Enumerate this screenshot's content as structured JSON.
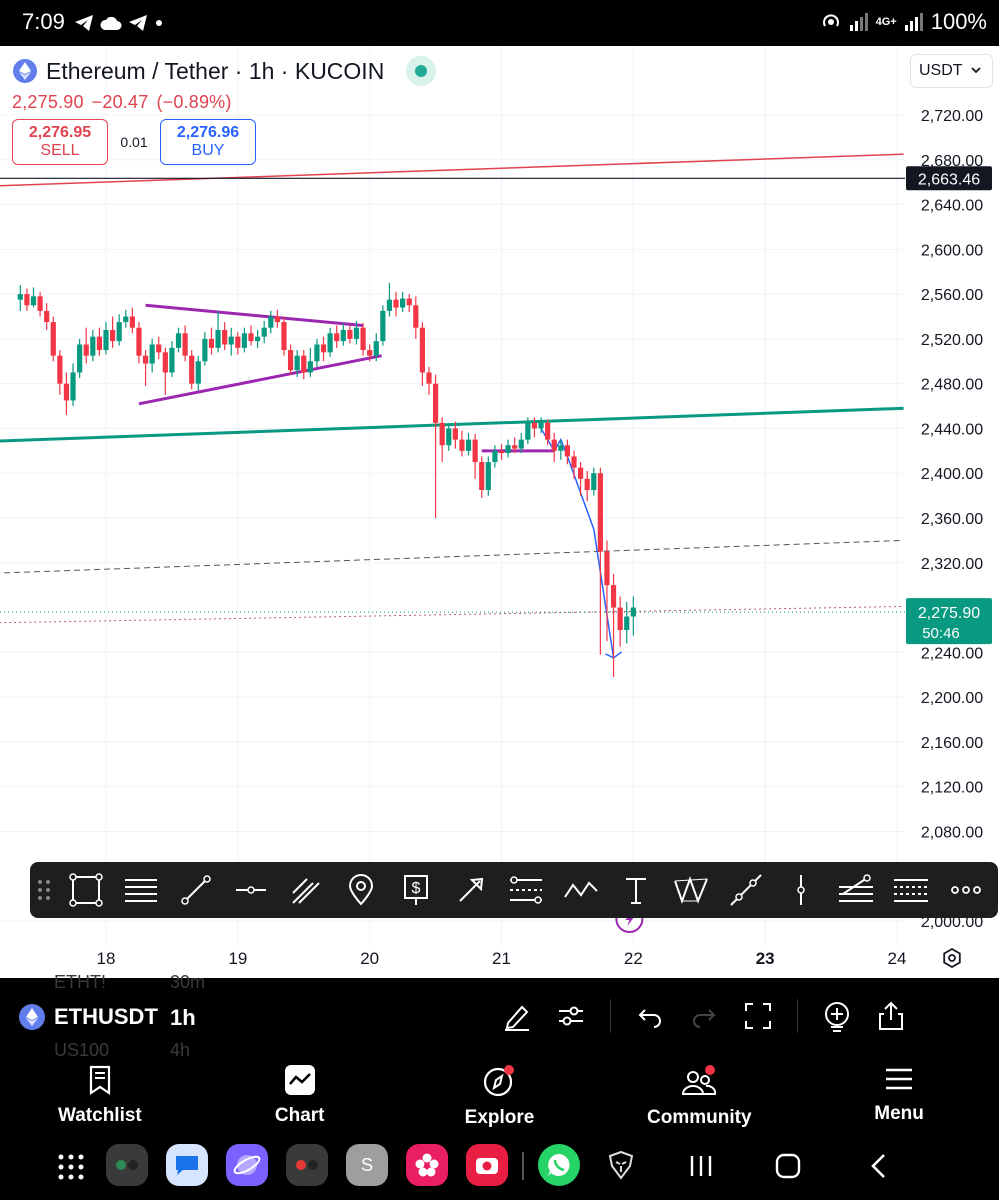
{
  "status_bar": {
    "time": "7:09",
    "network": "4G+",
    "battery": "100%"
  },
  "header": {
    "symbol_title": "Ethereum / Tether · 1h · KUCOIN",
    "last_price": "2,275.90",
    "change": "−20.47",
    "change_pct": "(−0.89%)",
    "sell_price": "2,276.95",
    "sell_label": "SELL",
    "spread": "0.01",
    "buy_price": "2,276.96",
    "buy_label": "BUY",
    "currency": "USDT"
  },
  "price_axis": {
    "ticks": [
      "2,720.00",
      "2,680.00",
      "2,640.00",
      "2,600.00",
      "2,560.00",
      "2,520.00",
      "2,480.00",
      "2,440.00",
      "2,400.00",
      "2,360.00",
      "2,320.00",
      "2,240.00",
      "2,200.00",
      "2,160.00",
      "2,120.00",
      "2,080.00",
      "2,000.00"
    ],
    "marker_level": "2,663.46",
    "current_price": "2,275.90",
    "countdown": "50:46"
  },
  "time_axis": {
    "labels": [
      "18",
      "19",
      "20",
      "21",
      "22",
      "23",
      "24"
    ],
    "bold_label": "23"
  },
  "chart_data": {
    "type": "candlestick",
    "symbol": "ETHUSDT",
    "interval": "1h",
    "x_days": [
      18,
      19,
      20,
      21,
      22,
      23,
      24
    ],
    "ylim": [
      2000,
      2740
    ],
    "colors": {
      "up": "#089981",
      "down": "#f23645",
      "triangle": "#9c27b0",
      "support": "#089981",
      "resistance": "#e0424f",
      "projection": "#2962ff"
    },
    "candles": [
      [
        17.35,
        2555,
        2560,
        2568,
        2545
      ],
      [
        17.4,
        2560,
        2550,
        2565,
        2545
      ],
      [
        17.45,
        2550,
        2558,
        2566,
        2548
      ],
      [
        17.5,
        2558,
        2545,
        2562,
        2540
      ],
      [
        17.55,
        2545,
        2535,
        2552,
        2528
      ],
      [
        17.6,
        2535,
        2505,
        2540,
        2500
      ],
      [
        17.65,
        2505,
        2480,
        2510,
        2470
      ],
      [
        17.7,
        2480,
        2465,
        2490,
        2452
      ],
      [
        17.75,
        2465,
        2490,
        2498,
        2460
      ],
      [
        17.8,
        2490,
        2515,
        2520,
        2485
      ],
      [
        17.85,
        2515,
        2505,
        2530,
        2498
      ],
      [
        17.9,
        2505,
        2522,
        2528,
        2500
      ],
      [
        17.95,
        2522,
        2510,
        2530,
        2505
      ],
      [
        18.0,
        2510,
        2528,
        2535,
        2506
      ],
      [
        18.05,
        2528,
        2518,
        2540,
        2512
      ],
      [
        18.1,
        2518,
        2535,
        2542,
        2514
      ],
      [
        18.15,
        2535,
        2540,
        2546,
        2530
      ],
      [
        18.2,
        2540,
        2530,
        2548,
        2525
      ],
      [
        18.25,
        2530,
        2505,
        2535,
        2498
      ],
      [
        18.3,
        2505,
        2498,
        2510,
        2478
      ],
      [
        18.35,
        2498,
        2515,
        2520,
        2490
      ],
      [
        18.4,
        2515,
        2508,
        2522,
        2502
      ],
      [
        18.45,
        2508,
        2490,
        2512,
        2470
      ],
      [
        18.5,
        2490,
        2512,
        2518,
        2486
      ],
      [
        18.55,
        2512,
        2525,
        2530,
        2508
      ],
      [
        18.6,
        2525,
        2505,
        2532,
        2500
      ],
      [
        18.65,
        2505,
        2480,
        2510,
        2475
      ],
      [
        18.7,
        2480,
        2500,
        2505,
        2474
      ],
      [
        18.75,
        2500,
        2520,
        2526,
        2496
      ],
      [
        18.8,
        2520,
        2512,
        2530,
        2506
      ],
      [
        18.85,
        2512,
        2528,
        2545,
        2508
      ],
      [
        18.9,
        2528,
        2515,
        2535,
        2510
      ],
      [
        18.95,
        2515,
        2522,
        2530,
        2505
      ],
      [
        19.0,
        2522,
        2512,
        2526,
        2506
      ],
      [
        19.05,
        2512,
        2525,
        2530,
        2508
      ],
      [
        19.1,
        2525,
        2518,
        2532,
        2514
      ],
      [
        19.15,
        2518,
        2522,
        2528,
        2512
      ],
      [
        19.2,
        2522,
        2530,
        2536,
        2516
      ],
      [
        19.25,
        2530,
        2540,
        2545,
        2525
      ],
      [
        19.3,
        2540,
        2535,
        2546,
        2530
      ],
      [
        19.35,
        2535,
        2510,
        2540,
        2505
      ],
      [
        19.4,
        2510,
        2492,
        2515,
        2488
      ],
      [
        19.45,
        2492,
        2505,
        2510,
        2486
      ],
      [
        19.5,
        2505,
        2490,
        2510,
        2484
      ],
      [
        19.55,
        2490,
        2500,
        2512,
        2486
      ],
      [
        19.6,
        2500,
        2515,
        2520,
        2495
      ],
      [
        19.65,
        2515,
        2508,
        2522,
        2500
      ],
      [
        19.7,
        2508,
        2525,
        2530,
        2504
      ],
      [
        19.75,
        2525,
        2518,
        2532,
        2512
      ],
      [
        19.8,
        2518,
        2528,
        2534,
        2514
      ],
      [
        19.85,
        2528,
        2520,
        2532,
        2516
      ],
      [
        19.9,
        2520,
        2530,
        2536,
        2515
      ],
      [
        19.95,
        2530,
        2510,
        2534,
        2505
      ],
      [
        20.0,
        2510,
        2505,
        2515,
        2500
      ],
      [
        20.05,
        2505,
        2518,
        2525,
        2500
      ],
      [
        20.1,
        2518,
        2545,
        2550,
        2514
      ],
      [
        20.15,
        2545,
        2555,
        2570,
        2540
      ],
      [
        20.2,
        2555,
        2548,
        2562,
        2540
      ],
      [
        20.25,
        2548,
        2556,
        2562,
        2544
      ],
      [
        20.3,
        2556,
        2550,
        2560,
        2544
      ],
      [
        20.35,
        2550,
        2530,
        2558,
        2520
      ],
      [
        20.4,
        2530,
        2490,
        2535,
        2478
      ],
      [
        20.45,
        2490,
        2480,
        2495,
        2470
      ],
      [
        20.5,
        2480,
        2445,
        2488,
        2360
      ],
      [
        20.55,
        2445,
        2425,
        2450,
        2410
      ],
      [
        20.6,
        2425,
        2440,
        2445,
        2420
      ],
      [
        20.65,
        2440,
        2430,
        2446,
        2422
      ],
      [
        20.7,
        2430,
        2420,
        2438,
        2415
      ],
      [
        20.75,
        2420,
        2430,
        2436,
        2416
      ],
      [
        20.8,
        2430,
        2410,
        2435,
        2395
      ],
      [
        20.85,
        2410,
        2385,
        2415,
        2378
      ],
      [
        20.9,
        2385,
        2410,
        2415,
        2380
      ],
      [
        20.95,
        2410,
        2420,
        2425,
        2405
      ],
      [
        21.0,
        2420,
        2418,
        2426,
        2412
      ],
      [
        21.05,
        2418,
        2425,
        2430,
        2414
      ],
      [
        21.1,
        2425,
        2422,
        2432,
        2418
      ],
      [
        21.15,
        2422,
        2430,
        2436,
        2418
      ],
      [
        21.2,
        2430,
        2445,
        2450,
        2426
      ],
      [
        21.25,
        2445,
        2440,
        2450,
        2432
      ],
      [
        21.3,
        2440,
        2445,
        2450,
        2436
      ],
      [
        21.35,
        2445,
        2430,
        2448,
        2425
      ],
      [
        21.4,
        2430,
        2420,
        2436,
        2410
      ],
      [
        21.45,
        2420,
        2425,
        2430,
        2412
      ],
      [
        21.5,
        2425,
        2415,
        2430,
        2408
      ],
      [
        21.55,
        2415,
        2405,
        2420,
        2395
      ],
      [
        21.6,
        2405,
        2395,
        2410,
        2380
      ],
      [
        21.65,
        2395,
        2385,
        2402,
        2375
      ],
      [
        21.7,
        2385,
        2400,
        2405,
        2380
      ],
      [
        21.75,
        2400,
        2330,
        2405,
        2238
      ],
      [
        21.8,
        2330,
        2300,
        2340,
        2250
      ],
      [
        21.85,
        2300,
        2280,
        2310,
        2218
      ],
      [
        21.9,
        2280,
        2260,
        2290,
        2245
      ],
      [
        21.95,
        2260,
        2272,
        2285,
        2248
      ],
      [
        22.0,
        2272,
        2280,
        2290,
        2255
      ]
    ],
    "drawings": [
      {
        "type": "triangle-upper",
        "from": [
          18.3,
          2550
        ],
        "to": [
          19.95,
          2532
        ]
      },
      {
        "type": "triangle-lower",
        "from": [
          18.25,
          2462
        ],
        "to": [
          20.09,
          2505
        ]
      },
      {
        "type": "support-line",
        "from": [
          17.0,
          2428
        ],
        "to": [
          24.05,
          2458
        ]
      },
      {
        "type": "resistance-line",
        "from": [
          17.0,
          2656
        ],
        "to": [
          24.05,
          2685
        ]
      },
      {
        "type": "dashed-line",
        "from": [
          17.0,
          2310
        ],
        "to": [
          24.05,
          2340
        ]
      },
      {
        "type": "dotted-line",
        "from": [
          17.0,
          2266
        ],
        "to": [
          24.05,
          2281
        ]
      },
      {
        "type": "range-box",
        "from": [
          20.85,
          2420
        ],
        "to": [
          21.4,
          2420
        ]
      },
      {
        "type": "projection",
        "points": [
          [
            21.3,
            2440
          ],
          [
            21.4,
            2420
          ],
          [
            21.45,
            2430
          ],
          [
            21.5,
            2415
          ],
          [
            21.7,
            2350
          ],
          [
            21.85,
            2235
          ]
        ]
      }
    ]
  },
  "drawing_toolbar": {
    "tools": [
      "rectangle-tool",
      "horizontal-ray-tool",
      "trend-line-tool",
      "horizontal-line-tool",
      "parallel-channel-tool",
      "location-pin-tool",
      "price-range-tool",
      "arrow-tool",
      "date-range-tool",
      "path-tool",
      "text-tool",
      "pattern-tool",
      "extended-line-tool",
      "vertical-line-tool",
      "fib-tool",
      "gann-tool",
      "more-tool"
    ]
  },
  "symbol_bar": {
    "symbol": "ETHUSDT",
    "timeframe": "1h",
    "ghost_above_symbol": "ETHT!",
    "ghost_above_tf": "30m",
    "ghost_below_symbol": "US100",
    "ghost_below_tf": "4h"
  },
  "bottom_nav": [
    {
      "label": "Watchlist",
      "icon": "watchlist-icon"
    },
    {
      "label": "Chart",
      "icon": "chart-icon"
    },
    {
      "label": "Explore",
      "icon": "explore-icon"
    },
    {
      "label": "Community",
      "icon": "community-icon"
    },
    {
      "label": "Menu",
      "icon": "menu-icon"
    }
  ]
}
